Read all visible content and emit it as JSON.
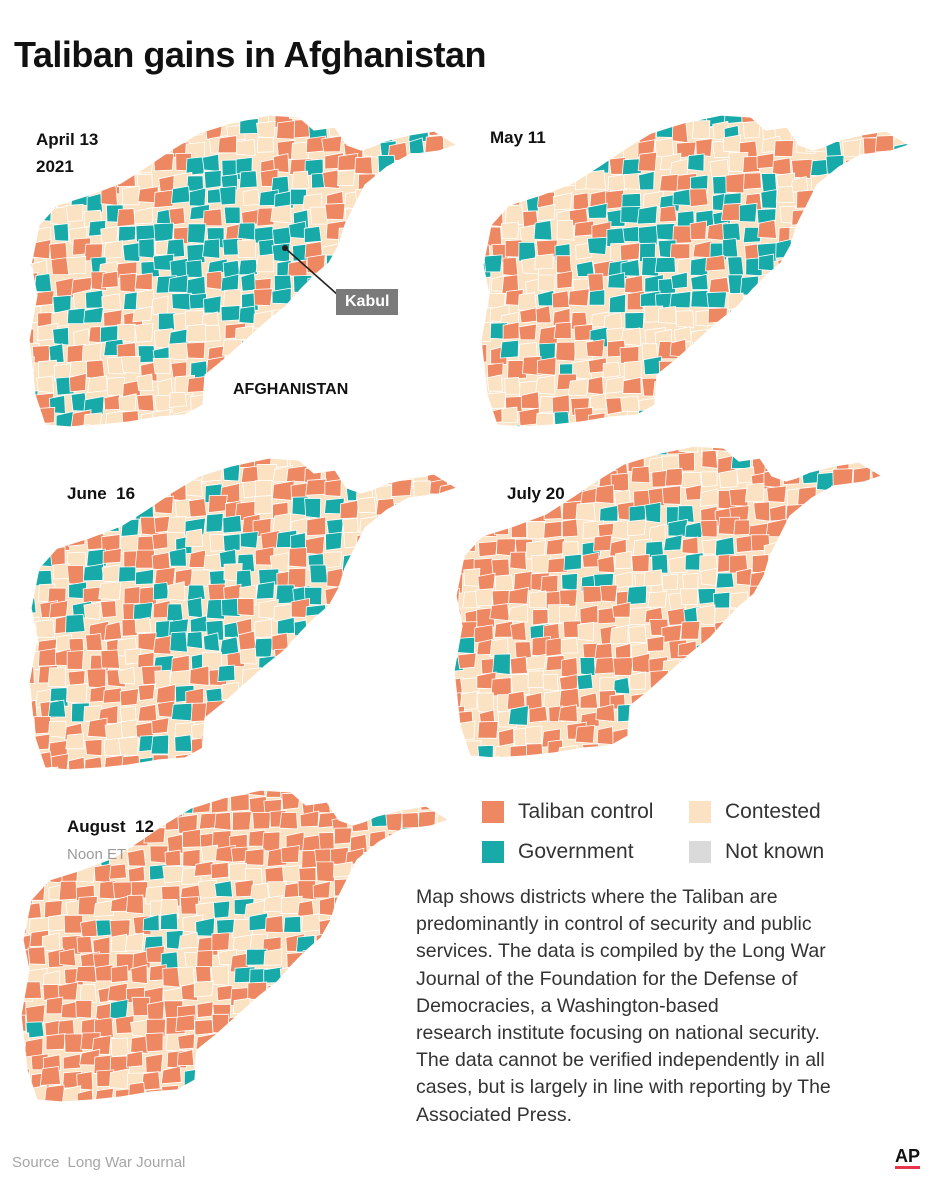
{
  "title": "Taliban gains in Afghanistan",
  "colors": {
    "taliban": "#ee8862",
    "government": "#17aaa8",
    "contested": "#fae2c3",
    "not_known": "#dadada",
    "border": "#ffffff"
  },
  "panels": [
    {
      "label": "April 13",
      "sublabel": "2021",
      "mix": {
        "taliban": 0.34,
        "government": 0.28,
        "contested": 0.38
      }
    },
    {
      "label": "May 11",
      "mix": {
        "taliban": 0.38,
        "government": 0.28,
        "contested": 0.34
      }
    },
    {
      "label": "June  16",
      "mix": {
        "taliban": 0.46,
        "government": 0.24,
        "contested": 0.3
      }
    },
    {
      "label": "July 20",
      "mix": {
        "taliban": 0.68,
        "government": 0.12,
        "contested": 0.2
      }
    },
    {
      "label": "August  12",
      "sublabel": "Noon ET",
      "mix": {
        "taliban": 0.8,
        "government": 0.09,
        "contested": 0.11
      }
    }
  ],
  "annotations": {
    "kabul": "Kabul",
    "country": "AFGHANISTAN"
  },
  "legend": [
    {
      "label": "Taliban control",
      "color": "#ee8862"
    },
    {
      "label": "Contested",
      "color": "#fae2c3"
    },
    {
      "label": "Government",
      "color": "#17aaa8"
    },
    {
      "label": "Not known",
      "color": "#dadada"
    }
  ],
  "note_lines": [
    "Map shows districts where the Taliban are",
    "predominantly in control of security and public",
    "services. The data is compiled by the Long War",
    "Journal of the Foundation for the Defense of",
    "Democracies, a Washington-based",
    "research institute focusing on national security.",
    "The data cannot be verified independently in all",
    "cases,  but is largely in line with reporting by The",
    "Associated Press."
  ],
  "source": {
    "label": "Source",
    "name": "Long War Journal"
  },
  "logo": "AP"
}
